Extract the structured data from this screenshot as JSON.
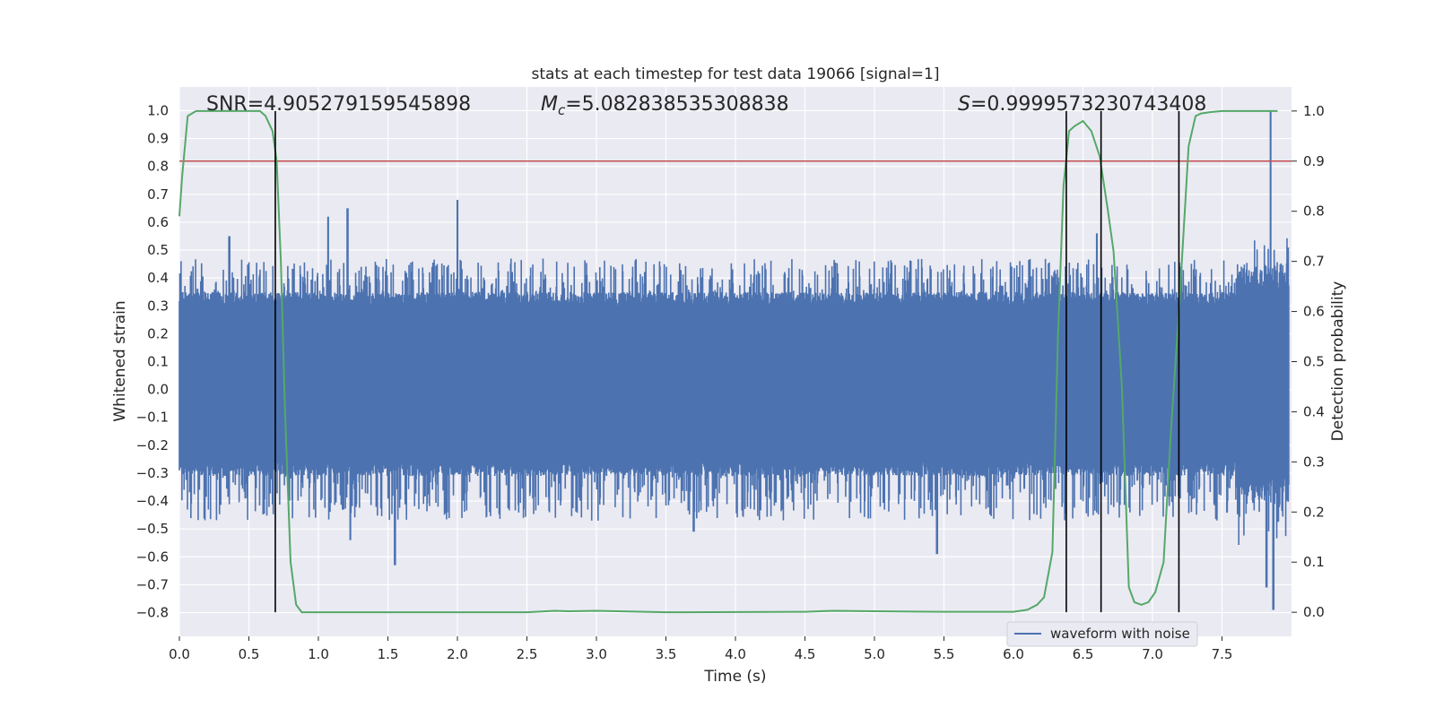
{
  "chart_data": {
    "type": "line",
    "title": "stats at each timestep for test data 19066 [signal=1]",
    "xlabel": "Time (s)",
    "ylabel": "Whitened strain",
    "y2label": "Detection probability",
    "xlim": [
      0,
      8
    ],
    "ylim": [
      -0.885,
      1.085
    ],
    "y2lim": [
      -0.048,
      1.048
    ],
    "x_ticks": [
      "0.0",
      "0.5",
      "1.0",
      "1.5",
      "2.0",
      "2.5",
      "3.0",
      "3.5",
      "4.0",
      "4.5",
      "5.0",
      "5.5",
      "6.0",
      "6.5",
      "7.0",
      "7.5"
    ],
    "y_ticks": [
      "1.0",
      "0.9",
      "0.8",
      "0.7",
      "0.6",
      "0.5",
      "0.4",
      "0.3",
      "0.2",
      "0.1",
      "0.0",
      "−0.1",
      "−0.2",
      "−0.3",
      "−0.4",
      "−0.5",
      "−0.6",
      "−0.7",
      "−0.8"
    ],
    "y2_ticks": [
      "1.0",
      "0.9",
      "0.8",
      "0.7",
      "0.6",
      "0.5",
      "0.4",
      "0.3",
      "0.2",
      "0.1",
      "0.0"
    ],
    "grid": true,
    "legend_position": "lower-right",
    "annotations": {
      "snr": "SNR=4.905279159545898",
      "mc_symbol": "M",
      "mc_sub": "c",
      "mc_value": "=5.082838535308838",
      "s_symbol": "S",
      "s_value": "=0.9999573230743408"
    },
    "series": [
      {
        "name": "waveform with noise",
        "color": "#4c72b0",
        "noise_envelope_approx": {
          "core_band": [
            -0.26,
            0.3
          ],
          "typical_peak": [
            -0.45,
            0.45
          ],
          "extreme_peaks": [
            {
              "x": 0.36,
              "y": 0.55
            },
            {
              "x": 1.07,
              "y": 0.62
            },
            {
              "x": 1.21,
              "y": 0.65
            },
            {
              "x": 1.55,
              "y": -0.63
            },
            {
              "x": 2.0,
              "y": 0.68
            },
            {
              "x": 1.23,
              "y": -0.54
            },
            {
              "x": 3.7,
              "y": -0.51
            },
            {
              "x": 5.45,
              "y": -0.59
            },
            {
              "x": 6.6,
              "y": 0.56
            },
            {
              "x": 7.85,
              "y": 1.0
            },
            {
              "x": 7.87,
              "y": -0.79
            },
            {
              "x": 7.82,
              "y": -0.71
            }
          ]
        }
      },
      {
        "name": "detection probability",
        "color": "#55a868",
        "axis": "right",
        "x": [
          0.0,
          0.02,
          0.06,
          0.12,
          0.2,
          0.4,
          0.58,
          0.62,
          0.67,
          0.7,
          0.73,
          0.76,
          0.8,
          0.84,
          0.88,
          0.93,
          1.0,
          1.5,
          2.0,
          2.5,
          2.7,
          2.8,
          3.0,
          3.5,
          4.5,
          4.7,
          5.0,
          5.5,
          6.0,
          6.1,
          6.17,
          6.22,
          6.28,
          6.32,
          6.36,
          6.4,
          6.44,
          6.5,
          6.56,
          6.62,
          6.68,
          6.72,
          6.78,
          6.83,
          6.87,
          6.92,
          6.97,
          7.02,
          7.08,
          7.13,
          7.19,
          7.26,
          7.31,
          7.35,
          7.42,
          7.5,
          7.6,
          7.7,
          7.8,
          7.9
        ],
        "y": [
          0.79,
          0.87,
          0.99,
          1.0,
          1.0,
          1.0,
          1.0,
          0.99,
          0.96,
          0.9,
          0.7,
          0.4,
          0.1,
          0.015,
          0.0,
          0.0,
          0.0,
          0.0,
          0.0,
          0.0,
          0.003,
          0.002,
          0.003,
          0.0,
          0.001,
          0.003,
          0.002,
          0.001,
          0.001,
          0.005,
          0.015,
          0.03,
          0.12,
          0.55,
          0.85,
          0.96,
          0.97,
          0.98,
          0.96,
          0.91,
          0.8,
          0.72,
          0.45,
          0.05,
          0.02,
          0.015,
          0.02,
          0.04,
          0.1,
          0.35,
          0.6,
          0.93,
          0.99,
          0.995,
          0.998,
          1.0,
          1.0,
          1.0,
          1.0,
          1.0
        ]
      }
    ],
    "threshold": {
      "axis": "right",
      "y": 0.9,
      "color": "#c44e52"
    },
    "event_lines_x": [
      0.69,
      6.38,
      6.63,
      7.19
    ],
    "event_line_right_value_top": 1.0,
    "event_line_right_value_bottom": 0.0
  }
}
